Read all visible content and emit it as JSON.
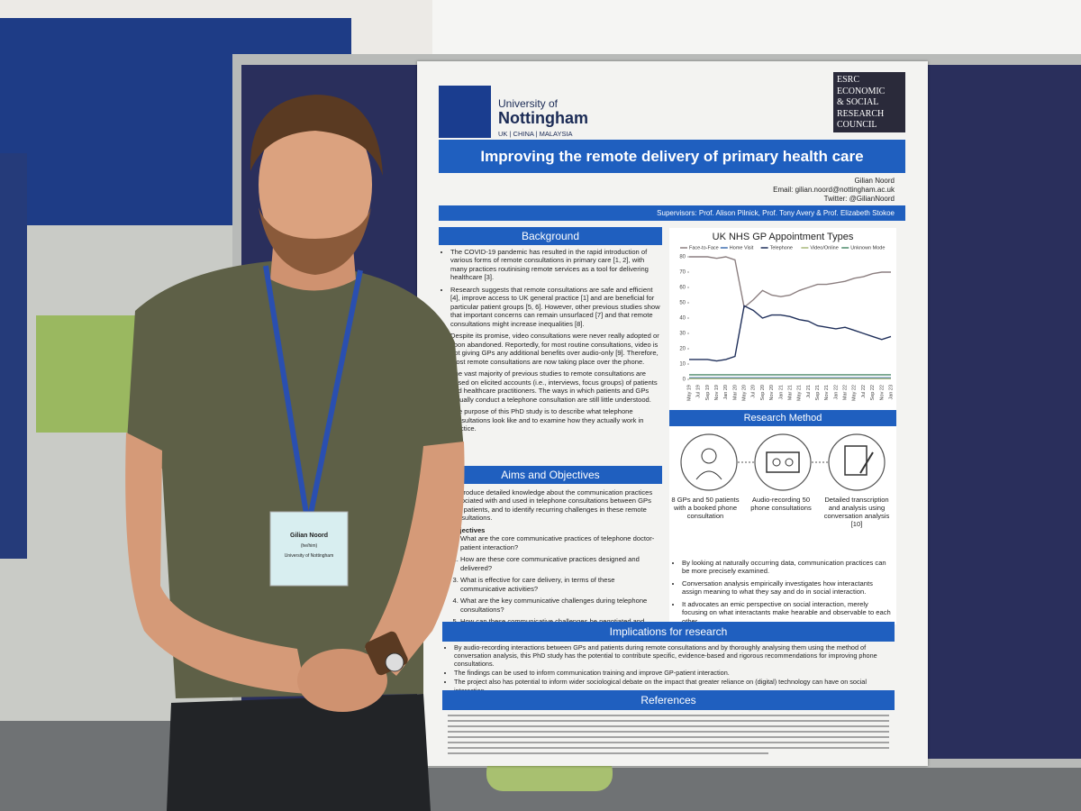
{
  "poster": {
    "university": {
      "line1": "University of",
      "line2": "Nottingham",
      "campuses": "UK | CHINA | MALAYSIA"
    },
    "funder": [
      "ESRC",
      "ECONOMIC",
      "& SOCIAL",
      "RESEARCH",
      "COUNCIL"
    ],
    "title": "Improving the remote delivery of primary health care",
    "author": "Gilian Noord",
    "email": "Email: gilian.noord@nottingham.ac.uk",
    "twitter": "Twitter: @GilianNoord",
    "supervisors": "Supervisors: Prof. Alison Pilnick, Prof. Tony Avery & Prof. Elizabeth Stokoe",
    "background": {
      "heading": "Background",
      "bullets": [
        "The COVID-19 pandemic has resulted in the rapid introduction of various forms of remote consultations in primary care [1, 2], with many practices routinising remote services as a tool for delivering healthcare [3].",
        "Research suggests that remote consultations are safe and efficient [4], improve access to UK general practice [1] and are beneficial for particular patient groups [5, 6]. However, other previous studies show that important concerns can remain unsurfaced [7] and that remote consultations might increase inequalities [8].",
        "Despite its promise, video consultations were never really adopted or soon abandoned. Reportedly, for most routine consultations, video is not giving GPs any additional benefits over audio-only [9]. Therefore, most remote consultations are now taking place over the phone.",
        "The vast majority of previous studies to remote consultations are based on elicited accounts (i.e., interviews, focus groups) of patients and healthcare practitioners. The ways in which patients and GPs actually conduct a telephone consultation are still little understood.",
        "The purpose of this PhD study is to describe what telephone consultations look like and to examine how they actually work in practice."
      ]
    },
    "aims": {
      "heading": "Aims and Objectives",
      "intro": "To produce detailed knowledge about the communication practices associated with and used in telephone consultations between GPs and patients, and to identify recurring challenges in these remote consultations.",
      "objectives_heading": "Objectives",
      "objectives": [
        "What are the core communicative practices of telephone doctor-patient interaction?",
        "How are these core communicative practices designed and delivered?",
        "What is effective for care delivery, in terms of these communicative activities?",
        "What are the key communicative challenges during telephone consultations?",
        "How can these communicative challenges be negotiated and minimised?"
      ]
    },
    "method": {
      "heading": "Research Method",
      "steps": [
        "8 GPs and 50 patients with a booked phone consultation",
        "Audio-recording 50 phone consultations",
        "Detailed transcription and analysis using conversation analysis [10]"
      ],
      "bullets": [
        "By looking at naturally occurring data, communication practices can be more precisely examined.",
        "Conversation analysis empirically investigates how interactants assign meaning to what they say and do in social interaction.",
        "It advocates an emic perspective on social interaction, merely focusing on what interactants make hearable and observable to each other."
      ]
    },
    "implications": {
      "heading": "Implications for research",
      "bullets": [
        "By audio-recording interactions between GPs and patients during remote consultations and by thoroughly analysing them using the method of conversation analysis, this PhD study has the potential to contribute specific, evidence-based and rigorous recommendations for improving phone consultations.",
        "The findings can be used to inform communication training and improve GP-patient interaction.",
        "The project also has potential to inform wider sociological debate on the impact that greater reliance on (digital) technology can have on social interaction."
      ]
    },
    "references": {
      "heading": "References"
    }
  },
  "chart_data": {
    "type": "line",
    "title": "UK NHS GP Appointment Types",
    "categories": [
      "May 19",
      "Jul 19",
      "Sep 19",
      "Nov 19",
      "Jan 20",
      "Mar 20",
      "May 20",
      "Jul 20",
      "Sep 20",
      "Nov 20",
      "Jan 21",
      "Mar 21",
      "May 21",
      "Jul 21",
      "Sep 21",
      "Nov 21",
      "Jan 22",
      "Mar 22",
      "May 22",
      "Jul 22",
      "Sep 22",
      "Nov 22",
      "Jan 23"
    ],
    "series": [
      {
        "name": "Face-to-Face",
        "color": "#8c7f80",
        "values": [
          80,
          80,
          80,
          79,
          80,
          78,
          47,
          52,
          58,
          55,
          54,
          55,
          58,
          60,
          62,
          62,
          63,
          64,
          66,
          67,
          69,
          70,
          70
        ]
      },
      {
        "name": "Home Visit",
        "color": "#3f6fb0",
        "values": [
          1,
          1,
          1,
          1,
          1,
          1,
          1,
          1,
          1,
          1,
          1,
          1,
          1,
          1,
          1,
          1,
          1,
          1,
          1,
          1,
          1,
          1,
          1
        ]
      },
      {
        "name": "Telephone",
        "color": "#1f2f5a",
        "values": [
          13,
          13,
          13,
          12,
          13,
          15,
          48,
          45,
          40,
          42,
          42,
          41,
          39,
          38,
          35,
          34,
          33,
          34,
          32,
          30,
          28,
          26,
          28
        ]
      },
      {
        "name": "Video/Online",
        "color": "#a8b87a",
        "values": [
          0.5,
          0.5,
          0.5,
          0.5,
          0.5,
          0.5,
          0.5,
          0.5,
          0.5,
          0.5,
          0.5,
          0.5,
          0.5,
          0.5,
          0.5,
          0.5,
          0.5,
          0.5,
          0.5,
          0.5,
          0.5,
          0.5,
          0.5
        ]
      },
      {
        "name": "Unknown Mode",
        "color": "#4c8a6a",
        "values": [
          3,
          3,
          3,
          3,
          3,
          3,
          3,
          3,
          3,
          3,
          3,
          3,
          3,
          3,
          3,
          3,
          3,
          3,
          3,
          3,
          3,
          3,
          3
        ]
      }
    ],
    "ylim": [
      0,
      80
    ],
    "yticks": [
      0,
      10,
      20,
      30,
      40,
      50,
      60,
      70,
      80
    ],
    "grid": false
  },
  "badge": {
    "name": "Gilian Noord",
    "pronouns": "(he/him)",
    "affiliation": "University of Nottingham"
  }
}
